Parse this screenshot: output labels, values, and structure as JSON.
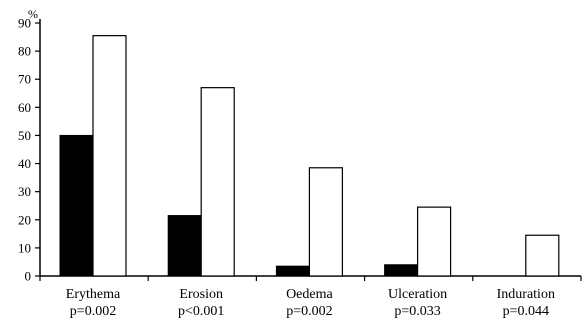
{
  "chart_data": {
    "type": "bar",
    "title": "",
    "xlabel": "",
    "ylabel": "%",
    "ylim": [
      0,
      90
    ],
    "yticks": [
      0,
      10,
      20,
      30,
      40,
      50,
      60,
      70,
      80,
      90
    ],
    "grid": false,
    "legend": "none",
    "categories": [
      "Erythema",
      "Erosion",
      "Oedema",
      "Ulceration",
      "Induration"
    ],
    "p_values": [
      "p=0.002",
      "p<0.001",
      "p=0.002",
      "p=0.033",
      "p=0.044"
    ],
    "series": [
      {
        "color": "#000000",
        "values": [
          50,
          21.5,
          3.5,
          4,
          0
        ]
      },
      {
        "color": "#ffffff",
        "values": [
          85.5,
          67,
          38.5,
          24.5,
          14.5
        ]
      }
    ]
  }
}
